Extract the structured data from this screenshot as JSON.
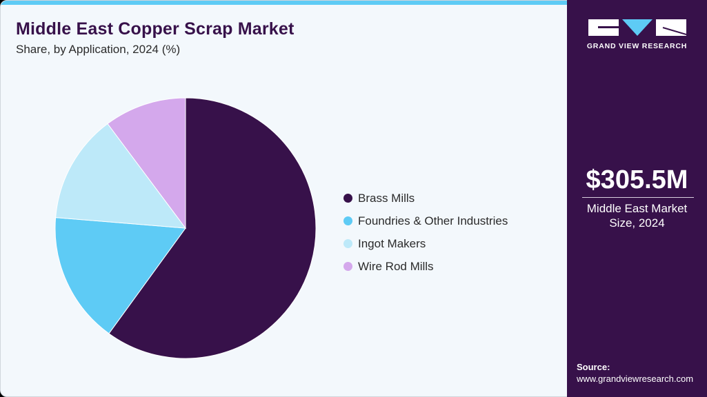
{
  "header": {
    "title": "Middle East Copper Scrap Market",
    "subtitle": "Share, by Application, 2024 (%)"
  },
  "sidebar": {
    "logo_text": "GRAND VIEW RESEARCH",
    "market_size_value": "$305.5M",
    "market_size_label_line1": "Middle East Market",
    "market_size_label_line2": "Size, 2024",
    "source_heading": "Source:",
    "source_url": "www.grandviewresearch.com"
  },
  "colors": {
    "brand_purple": "#37114a",
    "accent_blue": "#5ecbf5",
    "background": "#f3f8fc"
  },
  "legend": [
    {
      "label": "Brass Mills",
      "color": "#37114a"
    },
    {
      "label": "Foundries & Other Industries",
      "color": "#5ecbf5"
    },
    {
      "label": "Ingot Makers",
      "color": "#bde9f9"
    },
    {
      "label": "Wire Rod Mills",
      "color": "#d4a8ec"
    }
  ],
  "chart_data": {
    "type": "pie",
    "title": "Middle East Copper Scrap Market",
    "subtitle": "Share, by Application, 2024 (%)",
    "categories": [
      "Brass Mills",
      "Foundries & Other Industries",
      "Ingot Makers",
      "Wire Rod Mills"
    ],
    "values": [
      60.0,
      16.3,
      13.5,
      10.2
    ],
    "colors": [
      "#37114a",
      "#5ecbf5",
      "#bde9f9",
      "#d4a8ec"
    ],
    "start_angle": "12 o'clock, clockwise",
    "legend_position": "right",
    "annotation": "$305.5M Middle East Market Size, 2024"
  }
}
